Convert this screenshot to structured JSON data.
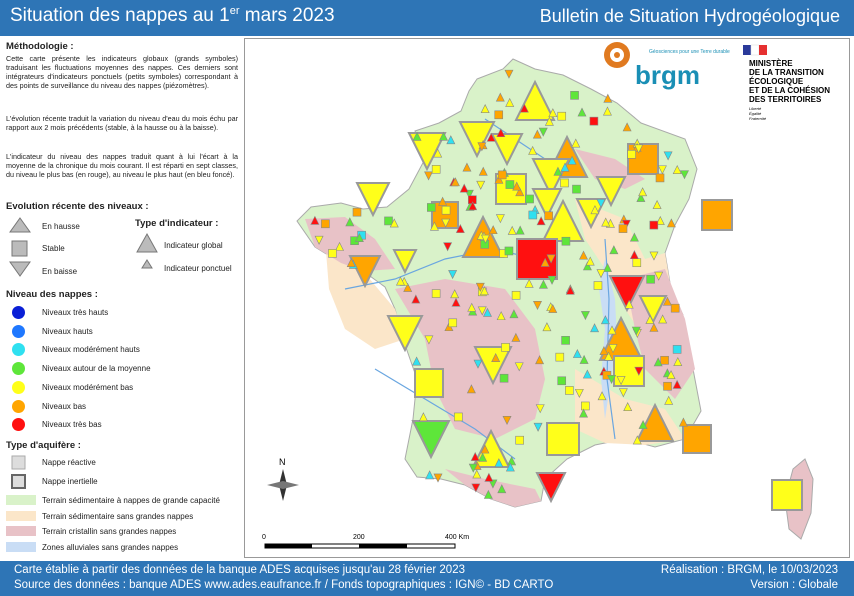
{
  "header": {
    "title_main": "Situation des nappes au 1",
    "title_sup": "er",
    "title_end": " mars 2023",
    "subtitle": "Bulletin de Situation Hydrogéologique"
  },
  "legend": {
    "method_title": "Méthodologie :",
    "method_p1": "Cette carte présente les indicateurs globaux (grands symboles) traduisant les fluctuations moyennes des nappes. Ces derniers sont intégrateurs d'indicateurs ponctuels (petits symboles) correspondant à des points de surveillance du niveau des nappes (piézomètres).",
    "method_p2": "L'évolution récente traduit la variation du niveau d'eau du mois échu par rapport aux 2 mois précédents (stable, à la hausse ou à la baisse).",
    "method_p3": "L'indicateur du niveau des nappes traduit quant à lui l'écart à la moyenne de la chronique du mois courant. Il est réparti en sept classes, du niveau le plus bas (en rouge), au niveau le plus haut (en bleu foncé).",
    "evolution_title": "Evolution récente des niveaux :",
    "evolution_items": [
      "En hausse",
      "Stable",
      "En baisse"
    ],
    "indicator_title": "Type d'indicateur :",
    "indicator_items": [
      "Indicateur global",
      "Indicateur ponctuel"
    ],
    "levels_title": "Niveau des nappes :",
    "levels": [
      {
        "label": "Niveaux très hauts",
        "color": "#0a1fd6"
      },
      {
        "label": "Niveaux hauts",
        "color": "#1f78ff"
      },
      {
        "label": "Niveaux modérément hauts",
        "color": "#2fe0f0"
      },
      {
        "label": "Niveaux autour de la moyenne",
        "color": "#5ee63a"
      },
      {
        "label": "Niveaux modérément bas",
        "color": "#ffff1a"
      },
      {
        "label": "Niveaux bas",
        "color": "#ffa500"
      },
      {
        "label": "Niveaux très bas",
        "color": "#ff1010"
      }
    ],
    "aquifer_title": "Type d'aquifère :",
    "aquifer_items": [
      "Nappe réactive",
      "Nappe inertielle"
    ],
    "terrain_items": [
      {
        "label": "Terrain sédimentaire à nappes de grande capacité",
        "color": "#d9f2c9"
      },
      {
        "label": "Terrain sédimentaire sans grandes nappes",
        "color": "#fbe6c9"
      },
      {
        "label": "Terrain cristallin sans grandes nappes",
        "color": "#e8c2c7"
      },
      {
        "label": "Zones alluviales sans grandes nappes",
        "color": "#c9ddf5"
      }
    ]
  },
  "logos": {
    "brgm_text": "brgm",
    "brgm_tagline": "Géosciences pour une Terre durable",
    "ministry_lines": [
      "MINISTÈRE",
      "DE LA TRANSITION",
      "ÉCOLOGIQUE",
      "ET DE LA COHÉSION",
      "DES TERRITOIRES"
    ],
    "motto_lines": [
      "Liberté",
      "Égalité",
      "Fraternité"
    ]
  },
  "map": {
    "scale_labels": [
      "0",
      "200",
      "400 Km"
    ],
    "north_label": "N"
  },
  "footer": {
    "line1_left": "Carte établie à partir des données de la banque ADES acquises jusqu'au 28 février 2023",
    "line2_left": "Source des données : banque ADES www.ades.eaufrance.fr / Fonds topographiques : IGN© - BD CARTO",
    "line1_right": "Réalisation : BRGM, le 10/03/2023",
    "line2_right": "Version : Globale"
  }
}
